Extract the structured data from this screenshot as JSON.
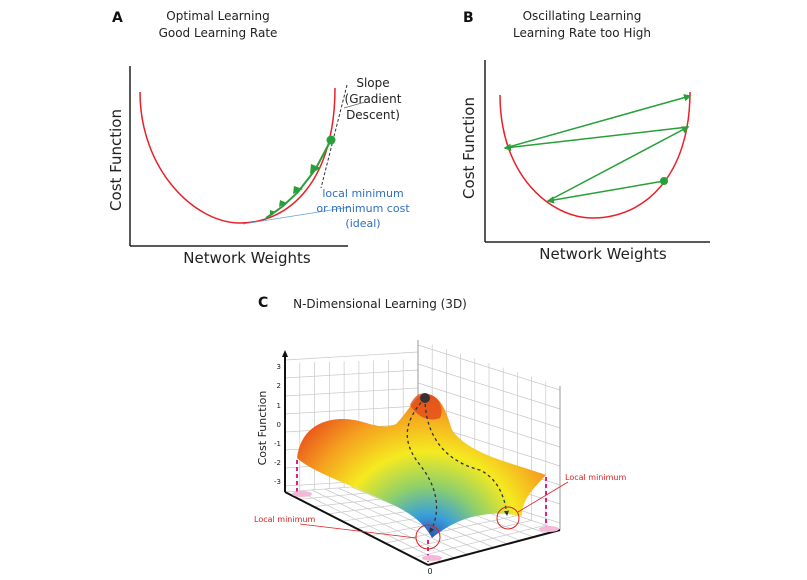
{
  "panel_a": {
    "label": "A",
    "title_line1": "Optimal Learning",
    "title_line2": "Good Learning Rate",
    "ylabel": "Cost Function",
    "xlabel": "Network Weights",
    "slope_line1": "Slope",
    "slope_line2": "(Gradient",
    "slope_line3": "Descent)",
    "min_line1": "local minimum",
    "min_line2": "or minimum cost",
    "min_line3": "(ideal)"
  },
  "panel_b": {
    "label": "B",
    "title_line1": "Oscillating Learning",
    "title_line2": "Learning Rate too High",
    "ylabel": "Cost Function",
    "xlabel": "Network Weights"
  },
  "panel_c": {
    "label": "C",
    "title": "N-Dimensional Learning (3D)",
    "ylabel": "Cost Function",
    "ticks": [
      "3",
      "2",
      "1",
      "0",
      "-1",
      "-2",
      "-3"
    ],
    "origin_label": "0",
    "local_min_left": "Local minimum",
    "local_min_right": "Local minimum"
  },
  "colors": {
    "curve": "#e8202a",
    "steps": "#27a03a",
    "annotation": "#2f6fc0",
    "highlight": "#e02020"
  }
}
